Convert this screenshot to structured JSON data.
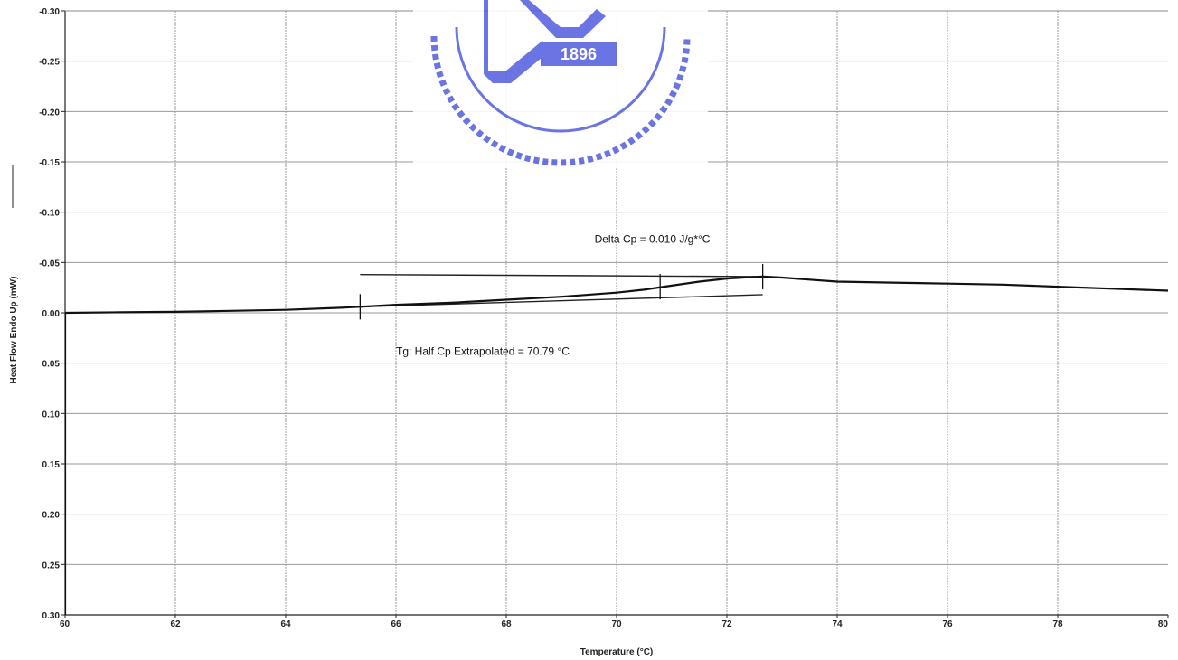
{
  "chart_data": {
    "type": "line",
    "xlabel": "Temperature (°C)",
    "ylabel": "Heat Flow Endo Up (mW)",
    "xlim": [
      60,
      80
    ],
    "ylim": [
      -0.3,
      0.3
    ],
    "y_inverted": true,
    "grid": true,
    "x_ticks": [
      "60",
      "62",
      "64",
      "66",
      "68",
      "70",
      "72",
      "74",
      "76",
      "78",
      "80"
    ],
    "y_ticks": [
      "-0.30",
      "-0.25",
      "-0.20",
      "-0.15",
      "-0.10",
      "-0.05",
      "0.00",
      "0.05",
      "0.10",
      "0.15",
      "0.20",
      "0.25",
      "0.30"
    ],
    "series": [
      {
        "color": "#111111",
        "x": [
          60.0,
          61.0,
          62.0,
          63.0,
          64.0,
          65.0,
          65.35,
          66.0,
          67.0,
          68.0,
          69.0,
          70.0,
          70.5,
          71.0,
          71.5,
          72.0,
          72.3,
          72.65,
          73.0,
          73.5,
          74.0,
          75.0,
          76.0,
          77.0,
          78.0,
          79.0,
          80.0
        ],
        "y": [
          0.0,
          -0.0005,
          -0.001,
          -0.002,
          -0.003,
          -0.005,
          -0.006,
          -0.008,
          -0.01,
          -0.013,
          -0.016,
          -0.02,
          -0.023,
          -0.027,
          -0.031,
          -0.034,
          -0.035,
          -0.036,
          -0.035,
          -0.033,
          -0.031,
          -0.03,
          -0.029,
          -0.028,
          -0.026,
          -0.024,
          -0.022
        ]
      }
    ],
    "baselines": [
      {
        "x": [
          65.35,
          72.65
        ],
        "y": [
          -0.038,
          -0.036
        ]
      },
      {
        "x": [
          65.35,
          72.65
        ],
        "y": [
          -0.006,
          -0.018
        ]
      }
    ],
    "markers": [
      {
        "x": 65.35,
        "y": -0.006
      },
      {
        "x": 70.79,
        "y": -0.026
      },
      {
        "x": 72.65,
        "y": -0.036
      }
    ],
    "annotations": [
      {
        "text": "Delta Cp = 0.010 J/g*°C",
        "x": 69.6,
        "y": -0.073
      },
      {
        "text": "Tg: Half Cp Extrapolated = 70.79 °C",
        "x": 66.0,
        "y": 0.038
      }
    ]
  }
}
